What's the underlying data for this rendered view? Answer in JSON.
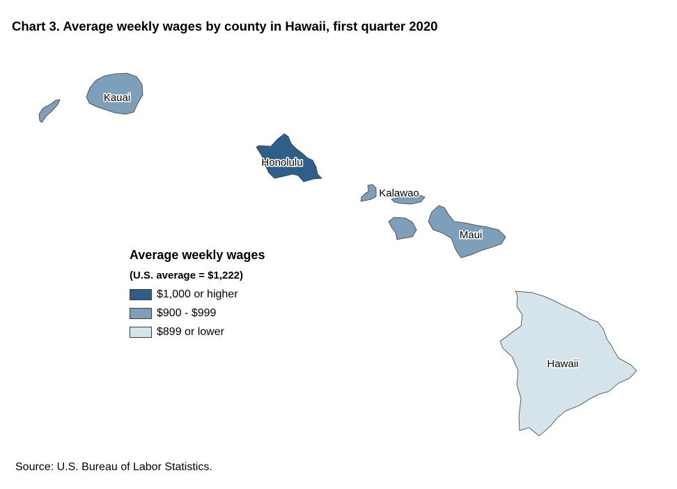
{
  "title": "Chart 3. Average weekly wages by county in Hawaii, first quarter 2020",
  "legend": {
    "title": "Average weekly wages",
    "subtitle": "(U.S. average = $1,222)",
    "items": [
      {
        "label": "$1,000 or higher",
        "color": "#2e5f8a"
      },
      {
        "label": "$900 - $999",
        "color": "#7d9fba"
      },
      {
        "label": "$899 or lower",
        "color": "#d5e4ea"
      }
    ]
  },
  "counties": [
    {
      "name": "Kauai",
      "wage_class": "$900 - $999",
      "color": "#7d9fba"
    },
    {
      "name": "Honolulu",
      "wage_class": "$1,000 or higher",
      "color": "#2e5f8a"
    },
    {
      "name": "Kalawao",
      "wage_class": "$900 - $999",
      "color": "#7d9fba"
    },
    {
      "name": "Maui",
      "wage_class": "$900 - $999",
      "color": "#7d9fba"
    },
    {
      "name": "Hawaii",
      "wage_class": "$899 or lower",
      "color": "#d5e4ea"
    }
  ],
  "source": "Source: U.S. Bureau of Labor Statistics."
}
